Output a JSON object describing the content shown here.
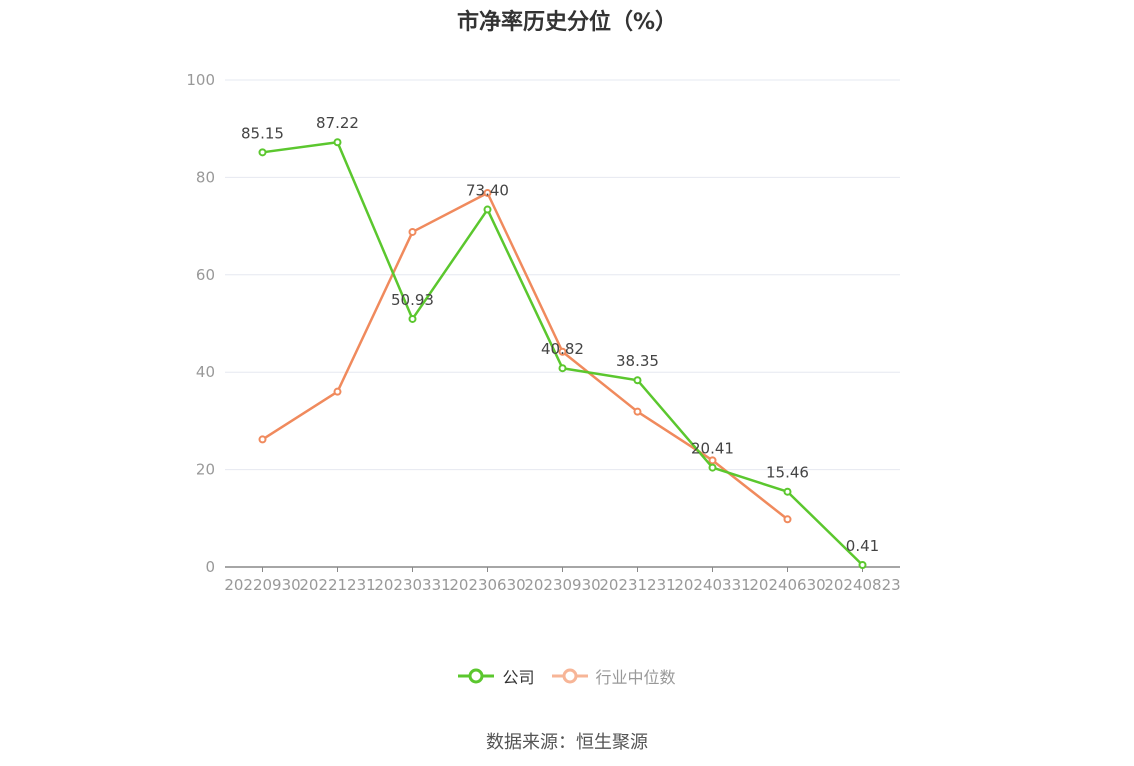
{
  "chart_data": {
    "type": "line",
    "title": "市净率历史分位（%）",
    "categories": [
      "20220930",
      "20221231",
      "20230331",
      "20230630",
      "20230930",
      "20231231",
      "20240331",
      "20240630",
      "20240823"
    ],
    "series": [
      {
        "name": "公司",
        "color": "#5bc72e",
        "values": [
          85.15,
          87.22,
          50.93,
          73.4,
          40.82,
          38.35,
          20.41,
          15.46,
          0.41
        ],
        "labels": [
          "85.15",
          "87.22",
          "50.93",
          "73.40",
          "40.82",
          "38.35",
          "20.41",
          "15.46",
          "0.41"
        ]
      },
      {
        "name": "行业中位数",
        "color": "#f08a5d",
        "legend_color": "#f7b597",
        "values": [
          26.2,
          36.0,
          68.8,
          76.8,
          44.2,
          31.9,
          21.9,
          9.8,
          null
        ]
      }
    ],
    "ylim": [
      0,
      100
    ],
    "yticks": [
      "0",
      "20",
      "40",
      "60",
      "80",
      "100"
    ],
    "grid": true,
    "legend_position": "bottom-center"
  },
  "source": "数据来源：恒生聚源"
}
